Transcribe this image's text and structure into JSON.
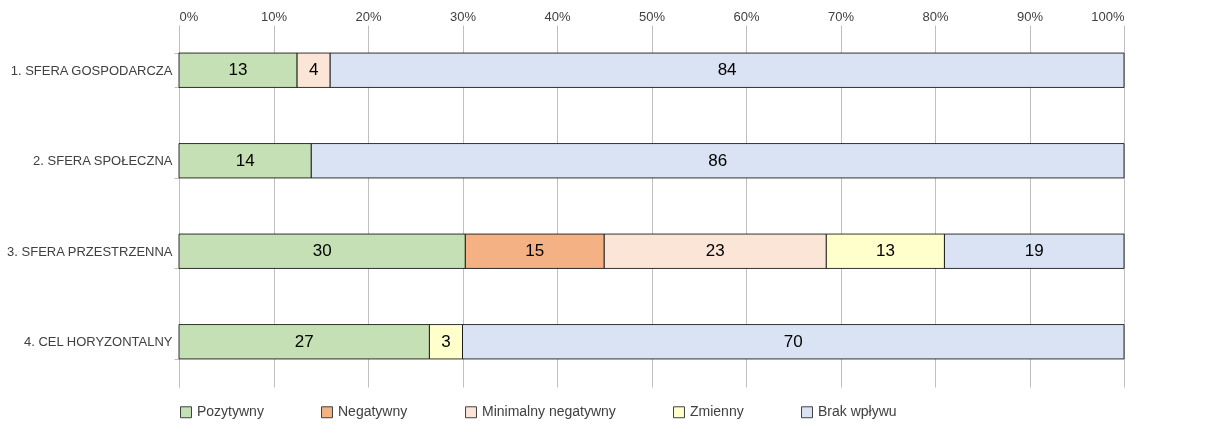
{
  "chart_data": {
    "type": "bar",
    "orientation": "horizontal",
    "stacked": true,
    "categories": [
      "1. SFERA GOSPODARCZA",
      "2. SFERA SPOŁECZNA",
      "3. SFERA PRZESTRZENNA",
      "4. CEL HORYZONTALNY"
    ],
    "series": [
      {
        "name": "Pozytywny",
        "color": "#c5e0b4",
        "values": [
          12.5,
          14,
          30.3,
          26.5
        ],
        "value_labels": [
          "13",
          "14",
          "30",
          "27"
        ]
      },
      {
        "name": "Negatywny",
        "color": "#f4b183",
        "values": [
          null,
          null,
          14.7,
          null
        ],
        "value_labels": [
          null,
          null,
          "15",
          null
        ]
      },
      {
        "name": "Minimalny negatywny",
        "color": "#fbe5d6",
        "values": [
          3.5,
          null,
          23.5,
          null
        ],
        "value_labels": [
          "4",
          null,
          "23",
          null
        ]
      },
      {
        "name": "Zmienny",
        "color": "#ffffcc",
        "values": [
          null,
          null,
          12.5,
          3.5
        ],
        "value_labels": [
          null,
          null,
          "13",
          "3"
        ]
      },
      {
        "name": "Brak wpływu",
        "color": "#dae3f3",
        "values": [
          84,
          86,
          19,
          70
        ],
        "value_labels": [
          "84",
          "86",
          "19",
          "70"
        ]
      }
    ],
    "xlim": [
      0,
      100
    ],
    "xticks": [
      {
        "value": 0,
        "label": "0%"
      },
      {
        "value": 10,
        "label": "10%"
      },
      {
        "value": 20,
        "label": "20%"
      },
      {
        "value": 30,
        "label": "30%"
      },
      {
        "value": 40,
        "label": "40%"
      },
      {
        "value": 50,
        "label": "50%"
      },
      {
        "value": 60,
        "label": "60%"
      },
      {
        "value": 70,
        "label": "70%"
      },
      {
        "value": 80,
        "label": "80%"
      },
      {
        "value": 90,
        "label": "90%"
      },
      {
        "value": 100,
        "label": "100%"
      }
    ],
    "grid": "x",
    "legend": "bottom"
  }
}
